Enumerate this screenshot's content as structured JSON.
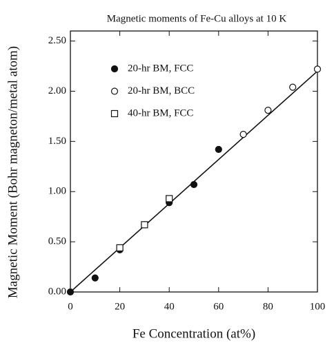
{
  "chart_data": {
    "type": "scatter",
    "title": "Magnetic moments of Fe-Cu alloys at 10 K",
    "x_label": "Fe Concentration (at%)",
    "y_label": "Magnetic Moment (Bohr magneton/metal atom)",
    "xlim": [
      0,
      100
    ],
    "ylim": [
      0,
      2.6
    ],
    "xticks": [
      0,
      20,
      40,
      60,
      80,
      100
    ],
    "yticks": [
      {
        "value": 0,
        "label": "0.00"
      },
      {
        "value": 0.5,
        "label": "0.50"
      },
      {
        "value": 1,
        "label": "1.00"
      },
      {
        "value": 1.5,
        "label": "1.50"
      },
      {
        "value": 2,
        "label": "2.00"
      },
      {
        "value": 2.5,
        "label": "2.50"
      }
    ],
    "legend": "upper left",
    "series": [
      {
        "name": "20-hr BM, FCC",
        "marker": "filled-circle",
        "color": "#111111",
        "x": [
          0,
          10,
          20,
          30,
          40,
          50,
          60
        ],
        "y": [
          0,
          0.14,
          0.42,
          0.67,
          0.89,
          1.07,
          1.42
        ]
      },
      {
        "name": "20-hr BM, BCC",
        "marker": "open-circle",
        "color": "#111111",
        "x": [
          70,
          80,
          90,
          100
        ],
        "y": [
          1.57,
          1.81,
          2.04,
          2.22
        ]
      },
      {
        "name": "40-hr BM, FCC",
        "marker": "open-square",
        "color": "#111111",
        "x": [
          20,
          30,
          40
        ],
        "y": [
          0.44,
          0.67,
          0.93
        ]
      }
    ],
    "fit_line": {
      "color": "#111111",
      "x": [
        0,
        100
      ],
      "y": [
        0,
        2.2
      ]
    }
  }
}
